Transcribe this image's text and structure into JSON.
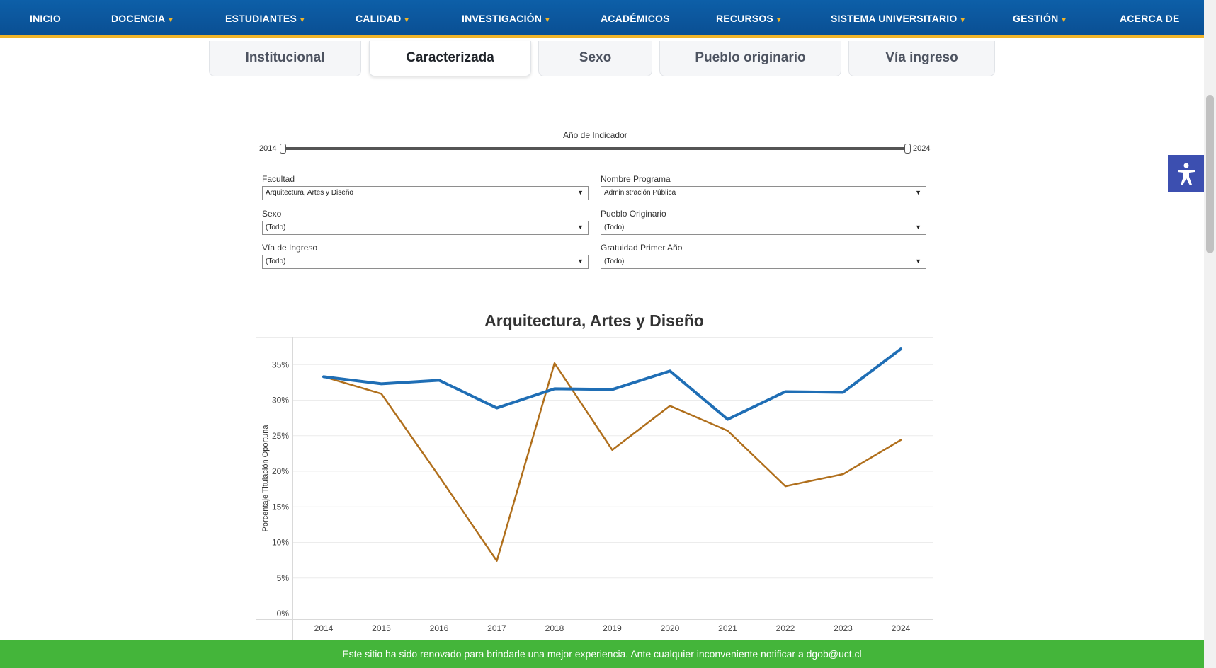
{
  "nav": {
    "items": [
      {
        "label": "INICIO",
        "dropdown": false
      },
      {
        "label": "DOCENCIA",
        "dropdown": true
      },
      {
        "label": "ESTUDIANTES",
        "dropdown": true
      },
      {
        "label": "CALIDAD",
        "dropdown": true
      },
      {
        "label": "INVESTIGACIÓN",
        "dropdown": true
      },
      {
        "label": "ACADÉMICOS",
        "dropdown": false
      },
      {
        "label": "RECURSOS",
        "dropdown": true
      },
      {
        "label": "SISTEMA UNIVERSITARIO",
        "dropdown": true
      },
      {
        "label": "GESTIÓN",
        "dropdown": true
      },
      {
        "label": "ACERCA DE",
        "dropdown": false
      }
    ],
    "chevron": "▾"
  },
  "tabs": [
    {
      "label": "Institucional",
      "active": false
    },
    {
      "label": "Caracterizada",
      "active": true
    },
    {
      "label": "Sexo",
      "active": false
    },
    {
      "label": "Pueblo originario",
      "active": false
    },
    {
      "label": "Vía ingreso",
      "active": false
    }
  ],
  "slider": {
    "title": "Año de Indicador",
    "min_label": "2014",
    "max_label": "2024"
  },
  "filters": {
    "facultad": {
      "label": "Facultad",
      "value": "Arquitectura, Artes y Diseño"
    },
    "programa": {
      "label": "Nombre Programa",
      "value": "Administración Pública"
    },
    "sexo": {
      "label": "Sexo",
      "value": "(Todo)"
    },
    "pueblo": {
      "label": "Pueblo Originario",
      "value": "(Todo)"
    },
    "via": {
      "label": "Vía de Ingreso",
      "value": "(Todo)"
    },
    "gratuidad": {
      "label": "Gratuidad Primer Año",
      "value": "(Todo)"
    },
    "arrow": "▼"
  },
  "chart_data": {
    "type": "line",
    "title": "Arquitectura, Artes y Diseño",
    "xlabel": "",
    "ylabel": "Porcentaje Titulación Oportuna",
    "x": [
      "2014",
      "2015",
      "2016",
      "2017",
      "2018",
      "2019",
      "2020",
      "2021",
      "2022",
      "2023",
      "2024"
    ],
    "yticks": [
      "0%",
      "5%",
      "10%",
      "15%",
      "20%",
      "25%",
      "30%",
      "35%"
    ],
    "ylim": [
      0,
      38
    ],
    "grid": true,
    "legend": "none",
    "series": [
      {
        "color": "#1f6eb5",
        "values": [
          33.3,
          32.3,
          32.8,
          28.9,
          31.6,
          31.5,
          34.1,
          27.3,
          31.2,
          31.1,
          37.2
        ]
      },
      {
        "color": "#b06f1c",
        "values": [
          33.3,
          30.9,
          19.3,
          7.4,
          35.2,
          23.0,
          29.2,
          25.7,
          17.9,
          19.6,
          24.4
        ]
      }
    ]
  },
  "banner": {
    "text": "Este sitio ha sido renovado para brindarle una mejor experiencia. Ante cualquier inconveniente notificar a dgob@uct.cl"
  },
  "colors": {
    "nav_bg": "#0a55a0",
    "nav_accent": "#f0b429",
    "banner_bg": "#44b53a",
    "a11y_bg": "#3c4fb0"
  }
}
